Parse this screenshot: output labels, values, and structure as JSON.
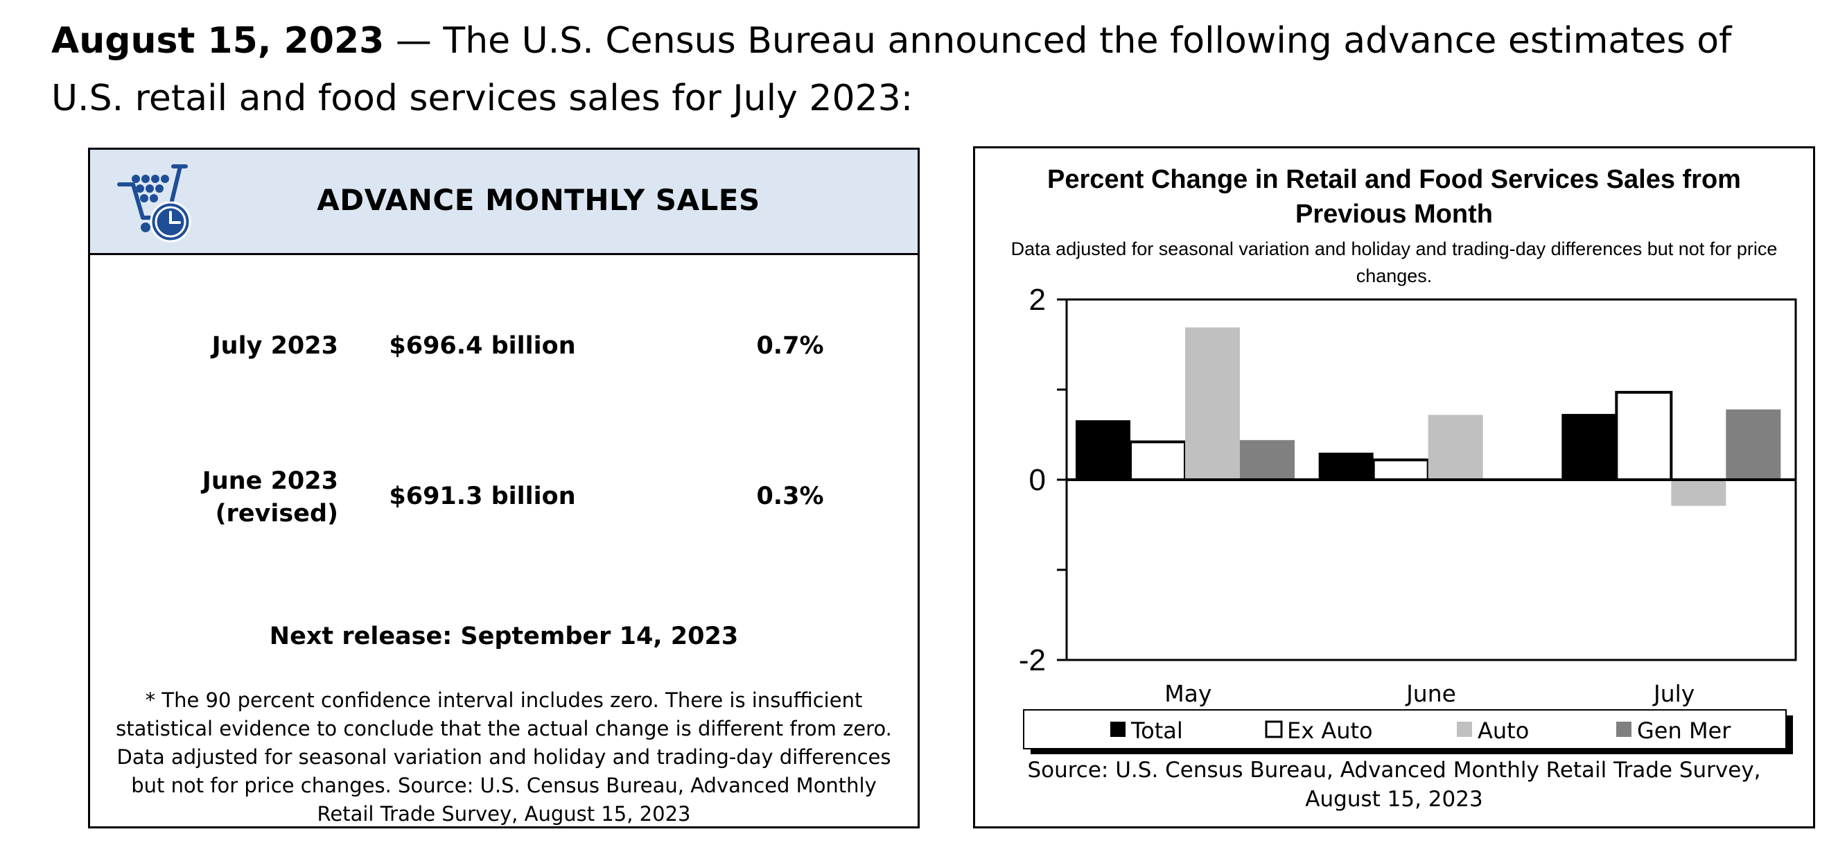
{
  "intro": {
    "date": "August 15, 2023",
    "text": " — The U.S. Census Bureau announced the following advance estimates of U.S. retail and food services sales for July 2023:"
  },
  "sales_panel": {
    "title": "ADVANCE MONTHLY SALES",
    "icon": "shopping-cart-clock-icon",
    "rows": [
      {
        "label_line1": "July 2023",
        "label_line2": "",
        "amount": "$696.4 billion",
        "percent": "0.7%"
      },
      {
        "label_line1": "June 2023",
        "label_line2": "(revised)",
        "amount": "$691.3 billion",
        "percent": "0.3%"
      }
    ],
    "next_release": "Next release: September 14, 2023",
    "notes": [
      "* The 90 percent confidence interval includes zero. There is insufficient statistical evidence to conclude that the actual change is different from zero.",
      "Data adjusted for seasonal variation and holiday and trading-day differences but not for price changes. Source: U.S. Census Bureau, Advanced Monthly Retail Trade Survey, August 15, 2023"
    ]
  },
  "chart_data": {
    "type": "bar",
    "title": "Percent Change in Retail and Food Services Sales from Previous Month",
    "subtitle": "Data adjusted for seasonal variation and holiday and trading-day differences but not for price changes.",
    "categories": [
      "May",
      "June",
      "July"
    ],
    "series": [
      {
        "name": "Total",
        "values": [
          0.66,
          0.3,
          0.73
        ],
        "color": "#000000",
        "outline": false
      },
      {
        "name": "Ex Auto",
        "values": [
          0.42,
          0.22,
          0.97
        ],
        "color": "#ffffff",
        "outline": true
      },
      {
        "name": "Auto",
        "values": [
          1.69,
          0.72,
          -0.29
        ],
        "color": "#c0c0c0",
        "outline": false
      },
      {
        "name": "Gen Mer",
        "values": [
          0.44,
          0.0,
          0.78
        ],
        "color": "#808080",
        "outline": false
      }
    ],
    "ylim": [
      -2,
      2
    ],
    "yticks": [
      -2,
      -1,
      0,
      1,
      2
    ],
    "ytick_labels": [
      "-2",
      "",
      "0",
      "",
      "2"
    ],
    "legend_placement": "bottom",
    "grid": false,
    "source": "Source: U.S. Census Bureau, Advanced Monthly Retail Trade Survey, August 15, 2023"
  }
}
